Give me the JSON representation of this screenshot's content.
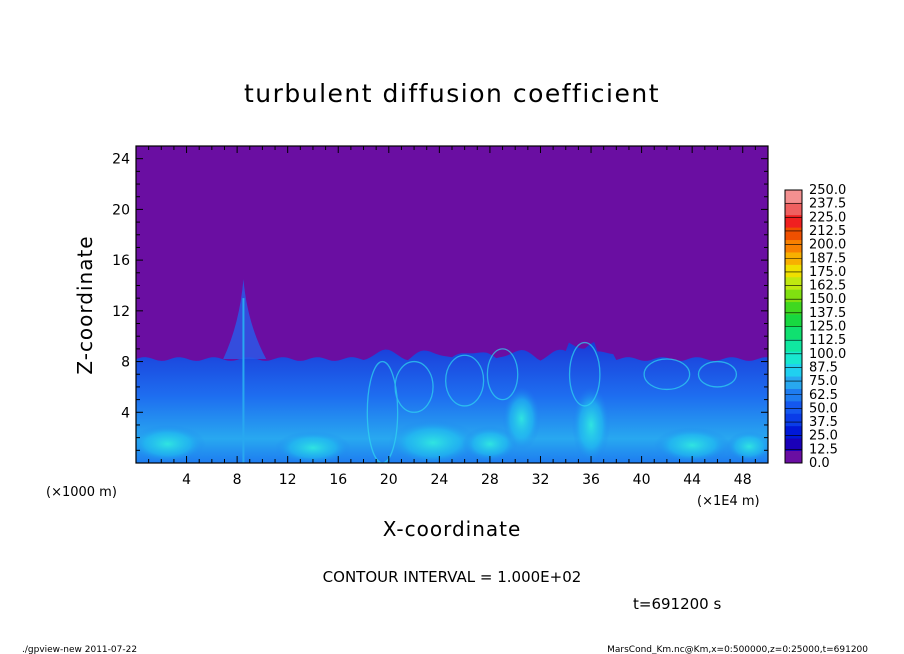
{
  "chart_data": {
    "type": "heatmap",
    "title": "turbulent diffusion coefficient",
    "xlabel": "X-coordinate",
    "ylabel": "Z-coordinate",
    "x_unit": "(×1E4 m)",
    "y_unit": "(×1000 m)",
    "xlim": [
      0,
      50
    ],
    "ylim": [
      0,
      25
    ],
    "x_ticks": [
      4,
      8,
      12,
      16,
      20,
      24,
      28,
      32,
      36,
      40,
      44,
      48
    ],
    "y_ticks": [
      4,
      8,
      12,
      16,
      20,
      24
    ],
    "x_tick_labels": [
      "4",
      "8",
      "12",
      "16",
      "20",
      "24",
      "28",
      "32",
      "36",
      "40",
      "44",
      "48"
    ],
    "y_tick_labels": [
      "4",
      "8",
      "12",
      "16",
      "20",
      "24"
    ],
    "colorbar": {
      "levels": [
        0.0,
        12.5,
        25.0,
        37.5,
        50.0,
        62.5,
        75.0,
        87.5,
        100.0,
        112.5,
        125.0,
        137.5,
        150.0,
        162.5,
        175.0,
        187.5,
        200.0,
        212.5,
        225.0,
        237.5,
        250.0
      ],
      "labels": [
        "0.0",
        "12.5",
        "25.0",
        "37.5",
        "50.0",
        "62.5",
        "75.0",
        "87.5",
        "100.0",
        "112.5",
        "125.0",
        "137.5",
        "150.0",
        "162.5",
        "175.0",
        "187.5",
        "200.0",
        "212.5",
        "225.0",
        "237.5",
        "250.0"
      ],
      "colors": [
        "#6a0ea2",
        "#1a00b8",
        "#0018d8",
        "#0a3ce8",
        "#1458f0",
        "#1e7cf0",
        "#28a8f0",
        "#20d0f0",
        "#18e8d0",
        "#10e8a0",
        "#10e070",
        "#18d840",
        "#40d820",
        "#80e010",
        "#c0e810",
        "#f0e000",
        "#f8b000",
        "#f88000",
        "#f05000",
        "#f02020",
        "#f06060",
        "#f49090"
      ]
    },
    "field_description_regions": [
      {
        "region": "boundary layer",
        "x_range": [
          0,
          50
        ],
        "z_top": 8.2,
        "values_range": [
          12.5,
          87.5
        ]
      },
      {
        "region": "free atmosphere",
        "x_range": [
          0,
          50
        ],
        "z_range": [
          8.5,
          25
        ],
        "value": 0.0
      },
      {
        "region": "plume",
        "x_center": 8.5,
        "z_top": 14.5
      }
    ],
    "contour_interval": "CONTOUR INTERVAL = 1.000E+02",
    "time_label": "t=691200 s"
  },
  "footer": {
    "left": "./gpview-new  2011-07-22",
    "right": "MarsCond_Km.nc@Km,x=0:500000,z=0:25000,t=691200"
  },
  "colors": {
    "background": "#ffffff",
    "free_atmosphere": "#6a0ea2"
  }
}
